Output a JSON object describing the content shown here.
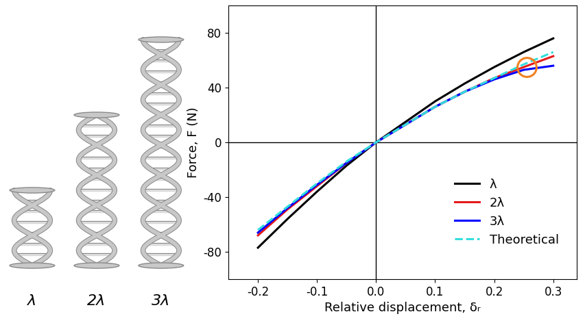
{
  "chart_data": {
    "type": "line",
    "x_label": "Relative displacement, δᵣ",
    "y_label": "Force, F (N)",
    "annotations": [
      "λ",
      "2λ",
      "3λ"
    ],
    "xlim": [
      -0.25,
      0.34
    ],
    "xticks": [
      -0.2,
      -0.1,
      0.0,
      0.1,
      0.2,
      0.3
    ],
    "ylim": [
      -100,
      100
    ],
    "yticks": [
      -80,
      -40,
      0,
      40,
      80
    ],
    "legend": "lower right",
    "grid": false,
    "highlight": {
      "x": 0.255,
      "y": 55,
      "color": "#f08020"
    },
    "series": [
      {
        "name": "λ",
        "color": "#000000",
        "line_style": "solid",
        "x": [
          -0.2,
          -0.15,
          -0.1,
          -0.05,
          0.0,
          0.05,
          0.1,
          0.15,
          0.2,
          0.25,
          0.3
        ],
        "values": [
          -77,
          -56,
          -36,
          -17,
          0,
          15,
          30,
          43,
          55,
          66,
          76
        ]
      },
      {
        "name": "2λ",
        "color": "#e41a1c",
        "line_style": "solid",
        "x": [
          -0.2,
          -0.15,
          -0.1,
          -0.05,
          0.0,
          0.05,
          0.1,
          0.15,
          0.2,
          0.25,
          0.3
        ],
        "values": [
          -68,
          -49,
          -32,
          -15,
          0,
          13,
          26,
          37,
          47,
          55,
          63
        ]
      },
      {
        "name": "3λ",
        "color": "#0000ff",
        "line_style": "solid",
        "x": [
          -0.2,
          -0.15,
          -0.1,
          -0.05,
          0.0,
          0.05,
          0.1,
          0.15,
          0.2,
          0.25,
          0.3
        ],
        "values": [
          -66,
          -48,
          -31,
          -15,
          0,
          13,
          26,
          37,
          46,
          53,
          56
        ]
      },
      {
        "name": "Theoretical",
        "color": "#33dddd",
        "line_style": "dashed",
        "x": [
          -0.2,
          -0.15,
          -0.1,
          -0.05,
          0.0,
          0.05,
          0.1,
          0.15,
          0.2,
          0.25,
          0.3
        ],
        "values": [
          -64,
          -47,
          -30,
          -14,
          0,
          13,
          26,
          37,
          47,
          57,
          66
        ]
      }
    ]
  }
}
